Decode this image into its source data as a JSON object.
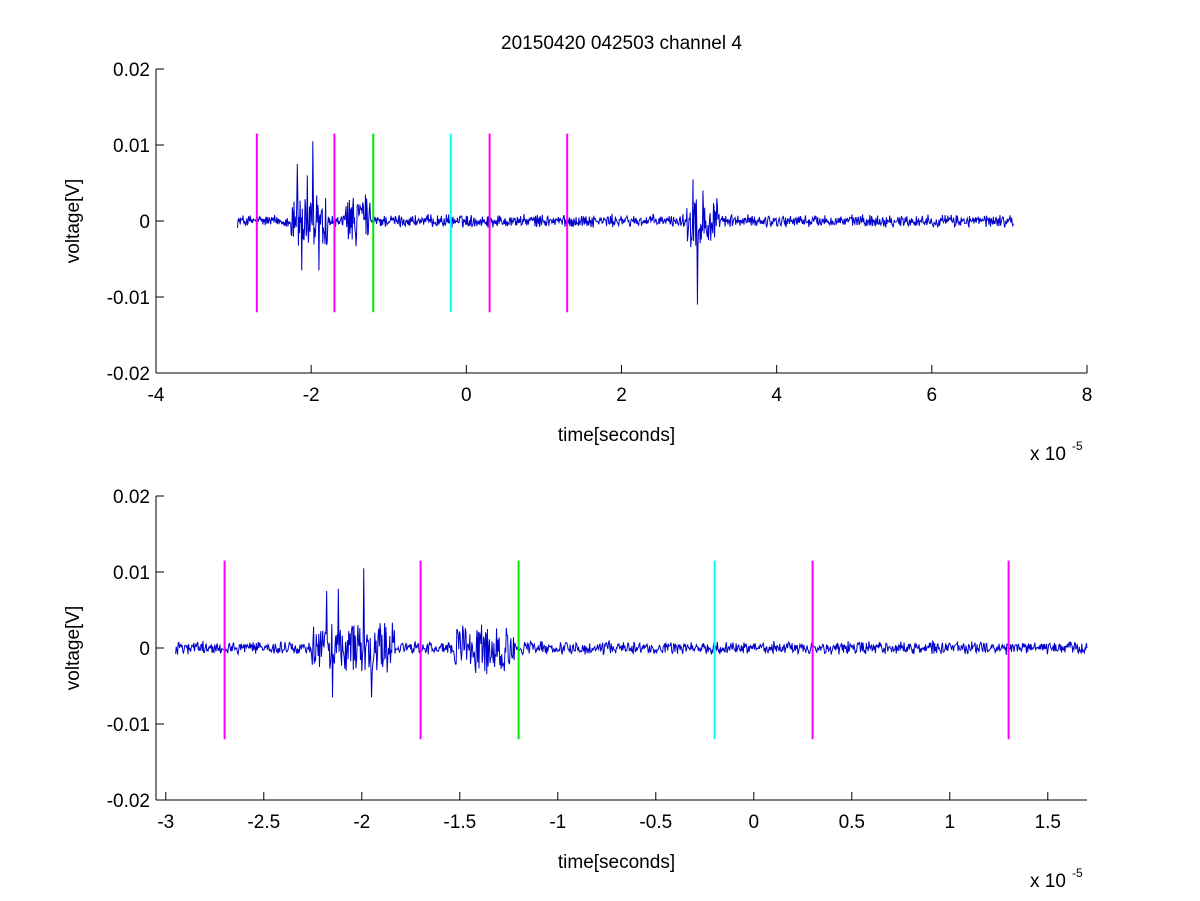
{
  "chart_data": [
    {
      "type": "line",
      "title": "20150420 042503 channel 4",
      "xlabel": "time[seconds]",
      "ylabel": "voltage[V]",
      "x_multiplier_label": "x 10",
      "x_multiplier_exp": "-5",
      "xlim": [
        -4,
        8
      ],
      "ylim": [
        -0.02,
        0.02
      ],
      "xticks": [
        -4,
        -2,
        0,
        2,
        4,
        6,
        8
      ],
      "xtick_labels": [
        "-4",
        "-2",
        "0",
        "2",
        "4",
        "6",
        "8"
      ],
      "yticks": [
        -0.02,
        -0.01,
        0,
        0.01,
        0.02
      ],
      "ytick_labels": [
        "-0.02",
        "-0.01",
        "0",
        "0.01",
        "0.02"
      ],
      "grid": false,
      "series": [
        {
          "color": "#0000cc",
          "x_range": [
            -2.95,
            7.05
          ],
          "bursts": [
            {
              "x": [
                -2.18,
                -2.12,
                -2.05,
                -1.98,
                -1.9
              ],
              "y": [
                0.0075,
                -0.0065,
                0.006,
                0.0105,
                -0.0065
              ]
            },
            {
              "x": [
                -1.48,
                -1.42,
                -1.36
              ],
              "y": [
                0.0018,
                -0.0033,
                0.0015
              ]
            },
            {
              "x": [
                2.92,
                2.98,
                3.05,
                3.12
              ],
              "y": [
                0.0055,
                -0.011,
                0.004,
                -0.0025
              ]
            }
          ]
        }
      ],
      "vertical_markers": [
        {
          "x": -2.7,
          "color": "#ff00ff",
          "y_range": [
            -0.012,
            0.0115
          ]
        },
        {
          "x": -1.7,
          "color": "#ff00ff",
          "y_range": [
            -0.012,
            0.0115
          ]
        },
        {
          "x": -1.2,
          "color": "#00ee00",
          "y_range": [
            -0.012,
            0.0115
          ]
        },
        {
          "x": -0.2,
          "color": "#00ffff",
          "y_range": [
            -0.012,
            0.0115
          ]
        },
        {
          "x": 0.3,
          "color": "#ff00ff",
          "y_range": [
            -0.012,
            0.0115
          ]
        },
        {
          "x": 1.3,
          "color": "#ff00ff",
          "y_range": [
            -0.012,
            0.0115
          ]
        }
      ]
    },
    {
      "type": "line",
      "title": "",
      "xlabel": "time[seconds]",
      "ylabel": "voltage[V]",
      "x_multiplier_label": "x 10",
      "x_multiplier_exp": "-5",
      "xlim": [
        -3.05,
        1.7
      ],
      "ylim": [
        -0.02,
        0.02
      ],
      "xticks": [
        -3,
        -2.5,
        -2,
        -1.5,
        -1,
        -0.5,
        0,
        0.5,
        1,
        1.5
      ],
      "xtick_labels": [
        "-3",
        "-2.5",
        "-2",
        "-1.5",
        "-1",
        "-0.5",
        "0",
        "0.5",
        "1",
        "1.5"
      ],
      "yticks": [
        -0.02,
        -0.01,
        0,
        0.01,
        0.02
      ],
      "ytick_labels": [
        "-0.02",
        "-0.01",
        "0",
        "0.01",
        "0.02"
      ],
      "grid": false,
      "series": [
        {
          "color": "#0000cc",
          "x_range": [
            -2.95,
            1.7
          ],
          "bursts": [
            {
              "x": [
                -2.18,
                -2.15,
                -2.12,
                -2.08,
                -2.02,
                -1.99,
                -1.95
              ],
              "y": [
                0.0075,
                -0.0065,
                0.0078,
                -0.003,
                0.003,
                0.0105,
                -0.0065
              ]
            },
            {
              "x": [
                -1.45,
                -1.42,
                -1.38,
                -1.34
              ],
              "y": [
                0.0018,
                -0.0033,
                0.0015,
                -0.0012
              ]
            }
          ]
        }
      ],
      "vertical_markers": [
        {
          "x": -2.7,
          "color": "#ff00ff",
          "y_range": [
            -0.012,
            0.0115
          ]
        },
        {
          "x": -1.7,
          "color": "#ff00ff",
          "y_range": [
            -0.012,
            0.0115
          ]
        },
        {
          "x": -1.2,
          "color": "#00ee00",
          "y_range": [
            -0.012,
            0.0115
          ]
        },
        {
          "x": -0.2,
          "color": "#00ffff",
          "y_range": [
            -0.012,
            0.0115
          ]
        },
        {
          "x": 0.3,
          "color": "#ff00ff",
          "y_range": [
            -0.012,
            0.0115
          ]
        },
        {
          "x": 1.3,
          "color": "#ff00ff",
          "y_range": [
            -0.012,
            0.0115
          ]
        }
      ]
    }
  ]
}
